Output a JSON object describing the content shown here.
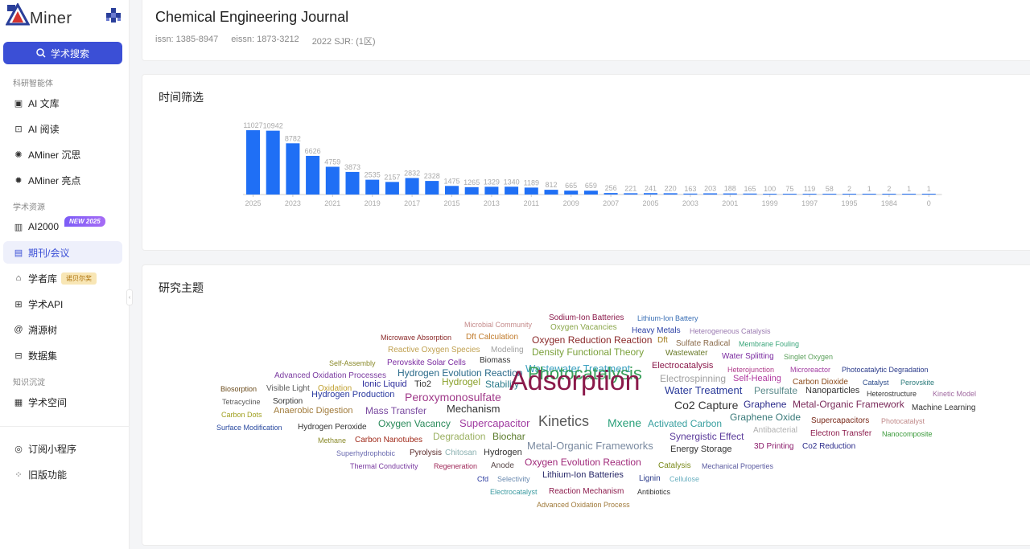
{
  "brand": {
    "name": "Miner",
    "initial": "A",
    "accent": "#3b4fd6"
  },
  "search_button": "学术搜索",
  "sections": {
    "s1": "科研智能体",
    "s2": "学术资源",
    "s3": "知识沉淀"
  },
  "nav": {
    "ai_library": "AI 文库",
    "ai_reading": "AI 阅读",
    "aminer_chensi": "AMiner 沉思",
    "aminer_liangdian": "AMiner 亮点",
    "ai2000": "AI2000",
    "journal": "期刊/会议",
    "scholar": "学者库",
    "api": "学术API",
    "tree": "溯源树",
    "dataset": "数据集",
    "space": "学术空间",
    "miniapp": "订阅小程序",
    "legacy": "旧版功能"
  },
  "badges": {
    "new2025": "NEW 2025",
    "nobel": "诺贝尔奖"
  },
  "journal": {
    "title": "Chemical Engineering Journal",
    "issn": "issn: 1385-8947",
    "eissn": "eissn: 1873-3212",
    "sjr": "2022 SJR: (1区)"
  },
  "time_title": "时间筛选",
  "topic_title": "研究主题",
  "chart_data": {
    "type": "bar",
    "title": "",
    "xlabel": "",
    "ylabel": "",
    "values": [
      11027,
      10942,
      8782,
      6626,
      4759,
      3873,
      2535,
      2157,
      2832,
      2328,
      1475,
      1265,
      1329,
      1340,
      1189,
      812,
      665,
      659,
      256,
      221,
      241,
      220,
      163,
      203,
      188,
      165,
      100,
      75,
      119,
      58,
      2,
      1,
      2,
      1,
      1
    ],
    "tick_labels": [
      "2025",
      "2023",
      "2021",
      "2019",
      "2017",
      "2015",
      "2013",
      "2011",
      "2009",
      "2007",
      "2005",
      "2003",
      "2001",
      "1999",
      "1997",
      "1995",
      "1984",
      "0"
    ],
    "color": "#1f6ff5",
    "ylim": [
      0,
      11027
    ]
  },
  "wordcloud": [
    {
      "t": "Sodium-Ion Batteries",
      "c": "#8b1a4b",
      "s": 10
    },
    {
      "t": "Lithium-Ion Battery",
      "c": "#3a6fb5",
      "s": 9
    },
    {
      "t": "Microbial Community",
      "c": "#c58b8b",
      "s": 9
    },
    {
      "t": "Oxygen Vacancies",
      "c": "#8aa64a",
      "s": 10
    },
    {
      "t": "Microwave Absorption",
      "c": "#8b2a2a",
      "s": 9
    },
    {
      "t": "Dft Calculation",
      "c": "#c07a2a",
      "s": 10
    },
    {
      "t": "Heavy Metals",
      "c": "#2a3fa5",
      "s": 10
    },
    {
      "t": "Heterogeneous Catalysis",
      "c": "#9a7ab0",
      "s": 9
    },
    {
      "t": "Oxygen Reduction Reaction",
      "c": "#8b2a2a",
      "s": 12
    },
    {
      "t": "Dft",
      "c": "#a07a1a",
      "s": 10
    },
    {
      "t": "Sulfate Radical",
      "c": "#8a6a4a",
      "s": 10
    },
    {
      "t": "Membrane Fouling",
      "c": "#3aa57a",
      "s": 9
    },
    {
      "t": "Reactive Oxygen Species",
      "c": "#c0a050",
      "s": 10
    },
    {
      "t": "Modeling",
      "c": "#a0a0a0",
      "s": 10
    },
    {
      "t": "Density Functional Theory",
      "c": "#7aa03a",
      "s": 12
    },
    {
      "t": "Wastewater",
      "c": "#6a7a2a",
      "s": 10
    },
    {
      "t": "Water Splitting",
      "c": "#7a2aa0",
      "s": 10
    },
    {
      "t": "Singlet Oxygen",
      "c": "#5aa05a",
      "s": 9
    },
    {
      "t": "Self-Assembly",
      "c": "#8a8a2a",
      "s": 9
    },
    {
      "t": "Perovskite Solar Cells",
      "c": "#7a2aa0",
      "s": 10
    },
    {
      "t": "Biomass",
      "c": "#333333",
      "s": 10
    },
    {
      "t": "Electrocatalysis",
      "c": "#8b1a4b",
      "s": 11
    },
    {
      "t": "Heterojunction",
      "c": "#b03a8a",
      "s": 9
    },
    {
      "t": "Microreactor",
      "c": "#a03aa0",
      "s": 9
    },
    {
      "t": "Photocatalytic Degradation",
      "c": "#2a3a8a",
      "s": 9
    },
    {
      "t": "Advanced Oxidation Processes",
      "c": "#7a3aa0",
      "s": 10
    },
    {
      "t": "Hydrogen Evolution Reaction",
      "c": "#2a6a8a",
      "s": 12
    },
    {
      "t": "Wastewater Treatment",
      "c": "#3aa0c0",
      "s": 13
    },
    {
      "t": "Electrospinning",
      "c": "#a0a0a0",
      "s": 12
    },
    {
      "t": "Self-Healing",
      "c": "#b03aa0",
      "s": 11
    },
    {
      "t": "Carbon Dioxide",
      "c": "#8a4a1a",
      "s": 10
    },
    {
      "t": "Catalyst",
      "c": "#2a4a8a",
      "s": 9
    },
    {
      "t": "Perovskite",
      "c": "#2a7a7a",
      "s": 9
    },
    {
      "t": "Biosorption",
      "c": "#6a4a1a",
      "s": 9
    },
    {
      "t": "Visible Light",
      "c": "#5a5a5a",
      "s": 10
    },
    {
      "t": "Oxidation",
      "c": "#c0a030",
      "s": 10
    },
    {
      "t": "Ionic Liquid",
      "c": "#2a2a9a",
      "s": 11
    },
    {
      "t": "Tio2",
      "c": "#333333",
      "s": 11
    },
    {
      "t": "Hydrogel",
      "c": "#8aa02a",
      "s": 12
    },
    {
      "t": "Stability",
      "c": "#2a7a8a",
      "s": 12
    },
    {
      "t": "Photocatalysis",
      "c": "#3aa05a",
      "s": 22
    },
    {
      "t": "Water Treatment",
      "c": "#2a3a9a",
      "s": 13
    },
    {
      "t": "Persulfate",
      "c": "#5a8a8a",
      "s": 12
    },
    {
      "t": "Nanoparticles",
      "c": "#333333",
      "s": 11
    },
    {
      "t": "Heterostructure",
      "c": "#333333",
      "s": 9
    },
    {
      "t": "Kinetic Model",
      "c": "#a06aa0",
      "s": 9
    },
    {
      "t": "Tetracycline",
      "c": "#5a5a5a",
      "s": 9
    },
    {
      "t": "Sorption",
      "c": "#333333",
      "s": 10
    },
    {
      "t": "Hydrogen Production",
      "c": "#2a3aa0",
      "s": 11
    },
    {
      "t": "Peroxymonosulfate",
      "c": "#a03a8a",
      "s": 14
    },
    {
      "t": "Adsorption",
      "c": "#8b1a4b",
      "s": 34
    },
    {
      "t": "Co2 Capture",
      "c": "#333333",
      "s": 14
    },
    {
      "t": "Graphene",
      "c": "#2a2a8a",
      "s": 12
    },
    {
      "t": "Metal-Organic Framework",
      "c": "#7a2a5a",
      "s": 12
    },
    {
      "t": "Machine Learning",
      "c": "#333333",
      "s": 10
    },
    {
      "t": "Carbon Dots",
      "c": "#a0a020",
      "s": 9
    },
    {
      "t": "Anaerobic Digestion",
      "c": "#a07a3a",
      "s": 11
    },
    {
      "t": "Mass Transfer",
      "c": "#7a4aa0",
      "s": 12
    },
    {
      "t": "Mechanism",
      "c": "#333333",
      "s": 13
    },
    {
      "t": "Graphene Oxide",
      "c": "#3a7a7a",
      "s": 12
    },
    {
      "t": "Supercapacitors",
      "c": "#7a2a1a",
      "s": 10
    },
    {
      "t": "Photocatalyst",
      "c": "#c08a8a",
      "s": 9
    },
    {
      "t": "Surface Modification",
      "c": "#2a4aa0",
      "s": 9
    },
    {
      "t": "Hydrogen Peroxide",
      "c": "#333333",
      "s": 10
    },
    {
      "t": "Oxygen Vacancy",
      "c": "#2a8a5a",
      "s": 12
    },
    {
      "t": "Supercapacitor",
      "c": "#a03aa0",
      "s": 13
    },
    {
      "t": "Kinetics",
      "c": "#5a5a5a",
      "s": 18
    },
    {
      "t": "Mxene",
      "c": "#2aa07a",
      "s": 14
    },
    {
      "t": "Activated Carbon",
      "c": "#3aa0a0",
      "s": 12
    },
    {
      "t": "Antibacterial",
      "c": "#b0b0b0",
      "s": 10
    },
    {
      "t": "Electron Transfer",
      "c": "#8b1a4b",
      "s": 10
    },
    {
      "t": "Nanocomposite",
      "c": "#3a9a3a",
      "s": 9
    },
    {
      "t": "Methane",
      "c": "#8a8a2a",
      "s": 9
    },
    {
      "t": "Carbon Nanotubes",
      "c": "#a02a1a",
      "s": 10
    },
    {
      "t": "Degradation",
      "c": "#9ab060",
      "s": 12
    },
    {
      "t": "Biochar",
      "c": "#5a7a2a",
      "s": 12
    },
    {
      "t": "Metal-Organic Frameworks",
      "c": "#7a8aa0",
      "s": 13
    },
    {
      "t": "Synergistic Effect",
      "c": "#5a3a9a",
      "s": 12
    },
    {
      "t": "Energy Storage",
      "c": "#333333",
      "s": 11
    },
    {
      "t": "3D Printing",
      "c": "#8a1a6a",
      "s": 10
    },
    {
      "t": "Co2 Reduction",
      "c": "#2a2a8a",
      "s": 10
    },
    {
      "t": "Superhydrophobic",
      "c": "#6a6ab0",
      "s": 9
    },
    {
      "t": "Pyrolysis",
      "c": "#5a2a2a",
      "s": 10
    },
    {
      "t": "Chitosan",
      "c": "#8ab0b0",
      "s": 10
    },
    {
      "t": "Hydrogen",
      "c": "#333333",
      "s": 11
    },
    {
      "t": "Thermal Conductivity",
      "c": "#7a3aa0",
      "s": 9
    },
    {
      "t": "Regeneration",
      "c": "#a02a5a",
      "s": 9
    },
    {
      "t": "Anode",
      "c": "#5a4a4a",
      "s": 10
    },
    {
      "t": "Oxygen Evolution Reaction",
      "c": "#a02a7a",
      "s": 12
    },
    {
      "t": "Catalysis",
      "c": "#7a8a1a",
      "s": 10
    },
    {
      "t": "Mechanical Properties",
      "c": "#5a5aa0",
      "s": 9
    },
    {
      "t": "Cfd",
      "c": "#2a3aa0",
      "s": 9
    },
    {
      "t": "Selectivity",
      "c": "#6a8ab0",
      "s": 9
    },
    {
      "t": "Lithium-Ion Batteries",
      "c": "#2a2a6a",
      "s": 11
    },
    {
      "t": "Lignin",
      "c": "#2a3a8a",
      "s": 10
    },
    {
      "t": "Cellulose",
      "c": "#6ab0c0",
      "s": 9
    },
    {
      "t": "Electrocatalyst",
      "c": "#3a9aa0",
      "s": 9
    },
    {
      "t": "Reaction Mechanism",
      "c": "#8b1a4b",
      "s": 10
    },
    {
      "t": "Antibiotics",
      "c": "#333333",
      "s": 9
    },
    {
      "t": "Advanced Oxidation Process",
      "c": "#a07a3a",
      "s": 9
    }
  ]
}
